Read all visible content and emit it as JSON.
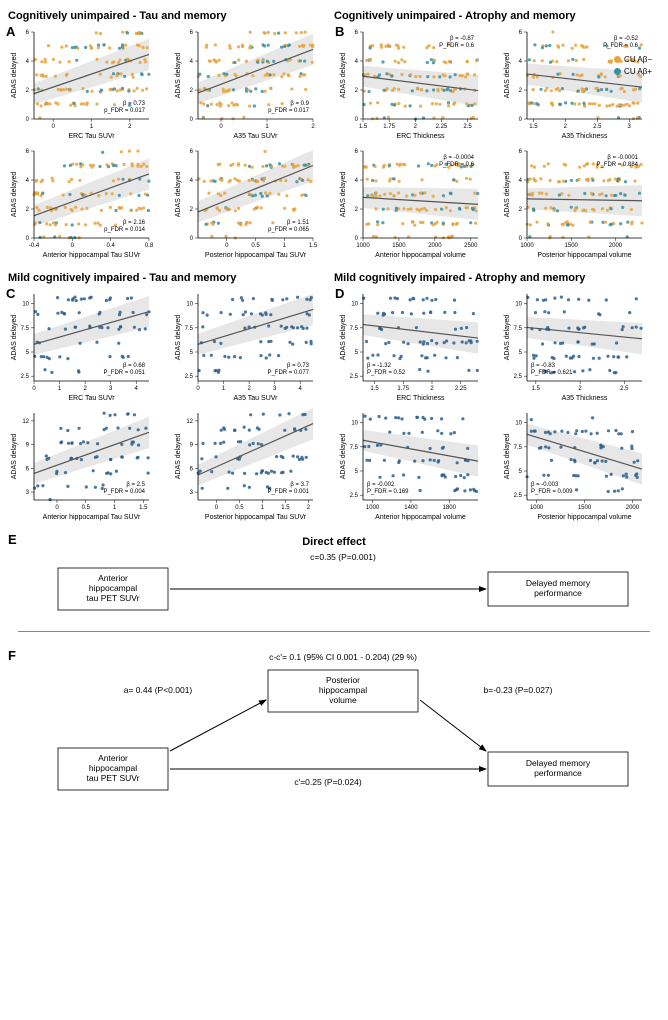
{
  "titles": {
    "A": "Cognitively unimpaired - Tau and memory",
    "B": "Cognitively unimpaired - Atrophy and memory",
    "C": "Mild cognitively impaired - Tau and memory",
    "D": "Mild cognitively impaired - Atrophy and memory"
  },
  "legend": {
    "abneg": {
      "label": "CU Aβ−",
      "color": "#e8a33d"
    },
    "abpos": {
      "label": "CU Aβ+",
      "color": "#3a8fa0"
    }
  },
  "colors": {
    "cu_neg": "#e8a33d",
    "cu_pos": "#3a8fa0",
    "mci": "#2c5f8d",
    "ci": "#c0c0c0",
    "line": "#666666"
  },
  "ylabel": "ADAS delayed",
  "panels": {
    "A": [
      {
        "xlabel": "ERC Tau SUVr",
        "beta": "β = 0.73",
        "p": "p_FDR = 0.017",
        "xlim": [
          -0.5,
          2.5
        ],
        "ylim": [
          0,
          6
        ],
        "xticks": [
          0,
          1,
          2
        ],
        "yticks": [
          0,
          2,
          4,
          6
        ],
        "slope": 0.9,
        "intercept": 2.2,
        "two_color": true,
        "stat_pos": "br"
      },
      {
        "xlabel": "A35 Tau SUVr",
        "beta": "β = 0.9",
        "p": "p_FDR = 0.017",
        "xlim": [
          -0.5,
          2.0
        ],
        "ylim": [
          0,
          6
        ],
        "xticks": [
          0,
          1,
          2
        ],
        "yticks": [
          0,
          2,
          4,
          6
        ],
        "slope": 1.2,
        "intercept": 2.4,
        "two_color": true,
        "stat_pos": "br"
      },
      {
        "xlabel": "Anterior hippocampal Tau SUVr",
        "beta": "β = 2.16",
        "p": "p_FDR = 0.014",
        "xlim": [
          -0.4,
          0.8
        ],
        "ylim": [
          0,
          6
        ],
        "xticks": [
          -0.4,
          0,
          0.4,
          0.8
        ],
        "yticks": [
          0,
          2,
          4,
          6
        ],
        "slope": 2.4,
        "intercept": 2.5,
        "two_color": true,
        "stat_pos": "br"
      },
      {
        "xlabel": "Posterior hippocampal Tau SUVr",
        "beta": "β = 1.51",
        "p": "p_FDR = 0.065",
        "xlim": [
          -0.5,
          1.5
        ],
        "ylim": [
          0,
          6
        ],
        "xticks": [
          0,
          0.5,
          1,
          1.5
        ],
        "yticks": [
          0,
          2,
          4,
          6
        ],
        "slope": 1.6,
        "intercept": 2.6,
        "two_color": true,
        "stat_pos": "br"
      }
    ],
    "B": [
      {
        "xlabel": "ERC Thickness",
        "beta": "β = -0.87",
        "p": "P_FDR = 0.6",
        "xlim": [
          1.5,
          2.6
        ],
        "ylim": [
          0,
          6
        ],
        "xticks": [
          1.5,
          1.75,
          2,
          2.25,
          2.5
        ],
        "yticks": [
          0,
          2,
          4,
          6
        ],
        "slope": -0.9,
        "intercept": 4.3,
        "two_color": true,
        "stat_pos": "tr"
      },
      {
        "xlabel": "A35 Thickness",
        "beta": "β = -0.52",
        "p": "P_FDR = 0.6",
        "xlim": [
          1.4,
          3.2
        ],
        "ylim": [
          0,
          6
        ],
        "xticks": [
          1.5,
          2,
          2.5,
          3
        ],
        "yticks": [
          0,
          2,
          4,
          6
        ],
        "slope": -0.5,
        "intercept": 3.8,
        "two_color": true,
        "stat_pos": "tr"
      },
      {
        "xlabel": "Anterior hippocampal volume",
        "beta": "β = -0.0004",
        "p": "P_FDR = 0.6",
        "xlim": [
          1000,
          2600
        ],
        "ylim": [
          0,
          6
        ],
        "xticks": [
          1000,
          1500,
          2000,
          2500
        ],
        "yticks": [
          0,
          2,
          4,
          6
        ],
        "slope": -0.0003,
        "intercept": 3.1,
        "two_color": true,
        "stat_pos": "tr"
      },
      {
        "xlabel": "Posterior hippocampal volume",
        "beta": "β = -0.0001",
        "p": "P_FDR = 0.884",
        "xlim": [
          1000,
          2300
        ],
        "ylim": [
          0,
          6
        ],
        "xticks": [
          1000,
          1500,
          2000
        ],
        "yticks": [
          0,
          2,
          4,
          6
        ],
        "slope": -0.0001,
        "intercept": 2.8,
        "two_color": true,
        "stat_pos": "tr"
      }
    ],
    "C": [
      {
        "xlabel": "ERC Tau SUVr",
        "beta": "β = 0.68",
        "p": "P_FDR = 0.051",
        "xlim": [
          0,
          4.5
        ],
        "ylim": [
          2,
          11
        ],
        "xticks": [
          0,
          1,
          2,
          3,
          4
        ],
        "yticks": [
          2.5,
          5,
          7.5,
          10
        ],
        "slope": 0.75,
        "intercept": 5.8,
        "two_color": false,
        "stat_pos": "br"
      },
      {
        "xlabel": "A35 Tau SUVr",
        "beta": "β = 0.73",
        "p": "P_FDR = 0.077",
        "xlim": [
          0,
          4.5
        ],
        "ylim": [
          2,
          11
        ],
        "xticks": [
          0,
          1,
          2,
          3,
          4
        ],
        "yticks": [
          2.5,
          5,
          7.5,
          10
        ],
        "slope": 0.8,
        "intercept": 5.8,
        "two_color": false,
        "stat_pos": "br"
      },
      {
        "xlabel": "Anterior hippocampal Tau SUVr",
        "beta": "β = 2.5",
        "p": "P_FDR = 0.004",
        "xlim": [
          -0.4,
          1.6
        ],
        "ylim": [
          2,
          13
        ],
        "xticks": [
          0,
          0.5,
          1,
          1.5
        ],
        "yticks": [
          3,
          6,
          9,
          12
        ],
        "slope": 2.6,
        "intercept": 6.4,
        "two_color": false,
        "stat_pos": "br"
      },
      {
        "xlabel": "Posterior hippocampal Tau SUVr",
        "beta": "β = 3.7",
        "p": "P_FDR = 0.001",
        "xlim": [
          -0.4,
          2.1
        ],
        "ylim": [
          2,
          13
        ],
        "xticks": [
          0,
          0.5,
          1,
          1.5,
          2
        ],
        "yticks": [
          3,
          6,
          9,
          12
        ],
        "slope": 2.6,
        "intercept": 6.2,
        "two_color": false,
        "stat_pos": "br"
      }
    ],
    "D": [
      {
        "xlabel": "ERC Thickness",
        "beta": "β = -1.32",
        "p": "P_FDR = 0.52",
        "xlim": [
          1.4,
          2.4
        ],
        "ylim": [
          2,
          11
        ],
        "xticks": [
          1.5,
          1.75,
          2,
          2.25
        ],
        "yticks": [
          2.5,
          5,
          7.5,
          10
        ],
        "slope": -1.4,
        "intercept": 9.8,
        "two_color": false,
        "stat_pos": "bl"
      },
      {
        "xlabel": "A35 Thickness",
        "beta": "β = -0.83",
        "p": "P_FDR = 0.621",
        "xlim": [
          1.4,
          2.7
        ],
        "ylim": [
          2,
          11
        ],
        "xticks": [
          1.5,
          2,
          2.5
        ],
        "yticks": [
          2.5,
          5,
          7.5,
          10
        ],
        "slope": -0.9,
        "intercept": 8.8,
        "two_color": false,
        "stat_pos": "bl"
      },
      {
        "xlabel": "Anterior hippocampal volume",
        "beta": "β = -0.002",
        "p": "P_FDR = 0.169",
        "xlim": [
          900,
          2100
        ],
        "ylim": [
          2,
          11
        ],
        "xticks": [
          1000,
          1400,
          1800
        ],
        "yticks": [
          2.5,
          5,
          7.5,
          10
        ],
        "slope": -0.0018,
        "intercept": 9.8,
        "two_color": false,
        "stat_pos": "bl"
      },
      {
        "xlabel": "Posterior hippocampal volume",
        "beta": "β = -0.003",
        "p": "P_FDR = 0.009",
        "xlim": [
          900,
          2100
        ],
        "ylim": [
          2,
          11
        ],
        "xticks": [
          1000,
          1500,
          2000
        ],
        "yticks": [
          2.5,
          5,
          7.5,
          10
        ],
        "slope": -0.003,
        "intercept": 11.5,
        "two_color": false,
        "stat_pos": "bl"
      }
    ]
  },
  "mediation": {
    "E": {
      "title": "Direct effect",
      "c": "c=0.35 (P=0.001)",
      "left": "Anterior\nhippocampal\ntau PET SUVr",
      "right": "Delayed memory\nperformance"
    },
    "F": {
      "indirect": "c-c'= 0.1 (95% CI 0.001 - 0.204) (29 %)",
      "a": "a= 0.44 (P<0.001)",
      "b": "b=-0.23 (P=0.027)",
      "cprime": "c'=0.25 (P=0.024)",
      "mediator": "Posterior\nhippocampal\nvolume",
      "left": "Anterior\nhippocampal\ntau PET SUVr",
      "right": "Delayed memory\nperformance"
    }
  }
}
